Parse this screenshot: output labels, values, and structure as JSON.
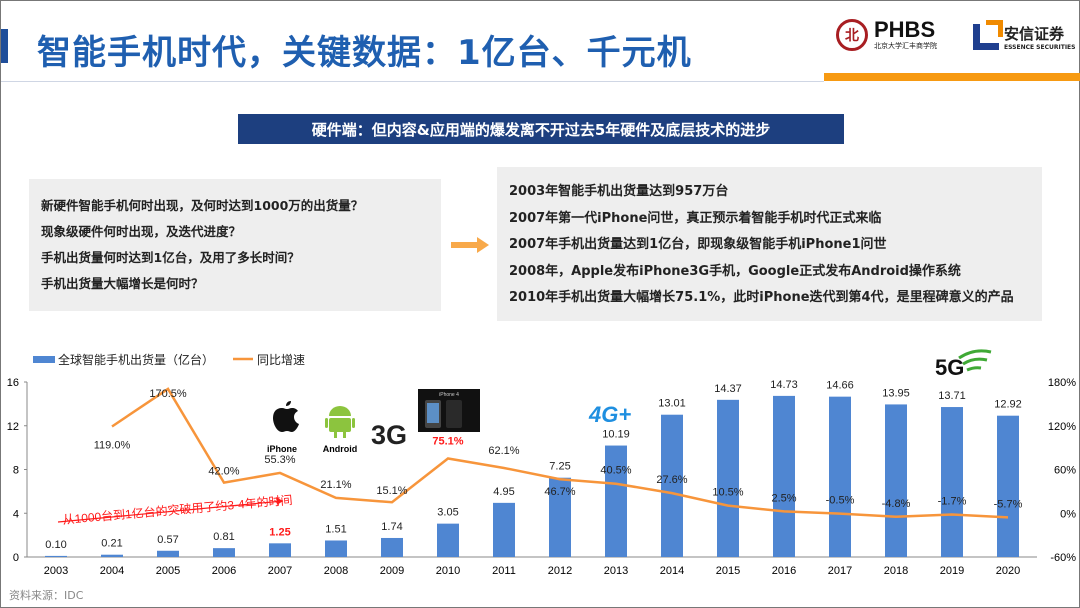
{
  "header": {
    "title": "智能手机时代，关键数据：1亿台、千元机",
    "logo_phbs": {
      "name": "PHBS",
      "sub": "北京大学汇丰商学院"
    },
    "logo_essence": {
      "name": "安信证券",
      "sub": "ESSENCE SECURITIES"
    }
  },
  "banner": "硬件端：但内容&应用端的爆发离不开过去5年硬件及底层技术的进步",
  "questions": [
    "新硬件智能手机何时出现，及何时达到1000万的出货量？",
    "现象级硬件何时出现，及迭代进度？",
    "手机出货量何时达到1亿台，及用了多长时间？",
    "手机出货量大幅增长是何时？"
  ],
  "answers": [
    "2003年智能手机出货量达到957万台",
    "2007年第一代iPhone问世，真正预示着智能手机时代正式来临",
    "2007年手机出货量达到1亿台，即现象级智能手机iPhone1问世",
    "2008年，Apple发布iPhone3G手机，Google正式发布Android操作系统",
    "2010年手机出货量大幅增长75.1%，此时iPhone迭代到第4代，是里程碑意义的产品"
  ],
  "icons": {
    "arrow": "right-arrow-icon",
    "iphone_label": "iPhone",
    "android_label": "Android",
    "3g_label": "3G",
    "4g_label": "4G+",
    "5g_label": "5G",
    "iphone4_label": "iPhone 4"
  },
  "annotation": "从1000台到1亿台的突破用了约3-4年的时间",
  "source": "资料来源：IDC",
  "colors": {
    "bar": "#4f86d2",
    "line": "#f7953b",
    "highlight": "#ff1a1a",
    "banner": "#1d3f7f",
    "title": "#1f5fb0",
    "accent": "#f79a12"
  },
  "chart_data": {
    "type": "bar+line",
    "categories": [
      "2003",
      "2004",
      "2005",
      "2006",
      "2007",
      "2008",
      "2009",
      "2010",
      "2011",
      "2012",
      "2013",
      "2014",
      "2015",
      "2016",
      "2017",
      "2018",
      "2019",
      "2020"
    ],
    "series": [
      {
        "name": "全球智能手机出货量（亿台）",
        "type": "bar",
        "axis": "left",
        "values": [
          0.1,
          0.21,
          0.57,
          0.81,
          1.25,
          1.51,
          1.74,
          3.05,
          4.95,
          7.25,
          10.19,
          13.01,
          14.37,
          14.73,
          14.66,
          13.95,
          13.71,
          12.92
        ],
        "labels": [
          "0.10",
          "0.21",
          "0.57",
          "0.81",
          "1.25",
          "1.51",
          "1.74",
          "3.05",
          "4.95",
          "7.25",
          "10.19",
          "13.01",
          "14.37",
          "14.73",
          "14.66",
          "13.95",
          "13.71",
          "12.92"
        ]
      },
      {
        "name": "同比增速",
        "type": "line",
        "axis": "right",
        "values": [
          null,
          119.0,
          170.5,
          42.0,
          55.3,
          21.1,
          15.1,
          75.1,
          62.1,
          46.7,
          40.5,
          27.6,
          10.5,
          2.5,
          -0.5,
          -4.8,
          -1.7,
          -5.7
        ],
        "labels": [
          "",
          "119.0%",
          "170.5%",
          "42.0%",
          "55.3%",
          "21.1%",
          "15.1%",
          "75.1%",
          "62.1%",
          "46.7%",
          "40.5%",
          "27.6%",
          "10.5%",
          "2.5%",
          "-0.5%",
          "-4.8%",
          "-1.7%",
          "-5.7%"
        ]
      }
    ],
    "left_axis": {
      "ylim": [
        0,
        16
      ],
      "ticks": [
        "0",
        "4",
        "8",
        "12",
        "16"
      ]
    },
    "right_axis": {
      "ylim": [
        -60,
        180
      ],
      "ticks": [
        "-60%",
        "0%",
        "60%",
        "120%",
        "180%"
      ]
    },
    "highlighted": [
      "2007 bar",
      "2010 line"
    ],
    "legend": "top-left",
    "grid": false
  }
}
